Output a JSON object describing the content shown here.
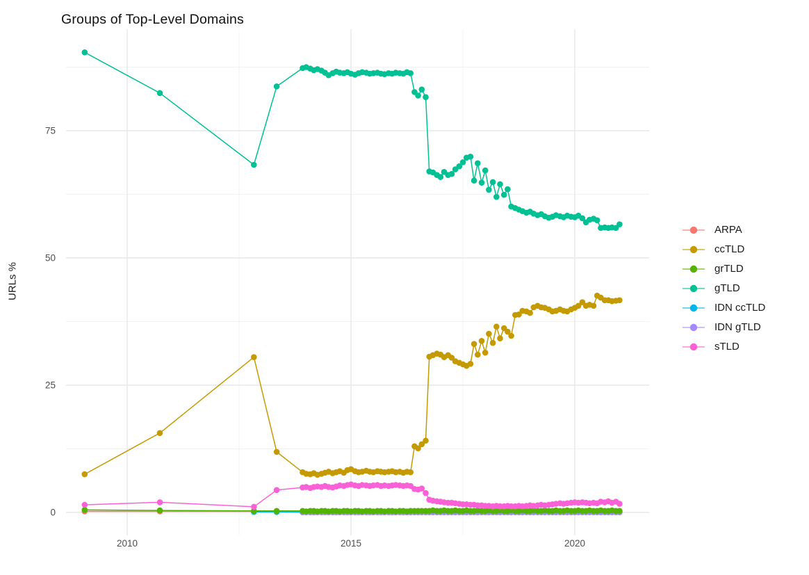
{
  "title": "Groups of Top-Level Domains",
  "axes": {
    "y_label": "URLs %",
    "y_ticks": [
      "0",
      "25",
      "50",
      "75"
    ],
    "y_tick_values": [
      0,
      25,
      50,
      75
    ],
    "y_minor_values": [
      12.5,
      37.5,
      62.5,
      87.5
    ],
    "x_ticks": [
      "2010",
      "2015",
      "2020"
    ],
    "x_tick_values": [
      2010,
      2015,
      2020
    ],
    "x_minor_values": [
      2012.5,
      2017.5
    ]
  },
  "legend": {
    "position": "right",
    "entries": [
      {
        "label": "ARPA",
        "color": "#F8766D"
      },
      {
        "label": "ccTLD",
        "color": "#C49A00"
      },
      {
        "label": "grTLD",
        "color": "#53B400"
      },
      {
        "label": "gTLD",
        "color": "#00C094"
      },
      {
        "label": "IDN ccTLD",
        "color": "#00B6EB"
      },
      {
        "label": "IDN gTLD",
        "color": "#A58AFF"
      },
      {
        "label": "sTLD",
        "color": "#FB61D7"
      }
    ]
  },
  "chart_data": {
    "type": "line",
    "title": "Groups of Top-Level Domains",
    "xlabel": "",
    "ylabel": "URLs %",
    "x_range_shown": [
      2008.6,
      2021.7
    ],
    "y_range_shown": [
      -4.5,
      95
    ],
    "grid": true,
    "legend_position": "right",
    "x": [
      2009.05,
      2010.73,
      2012.83,
      2013.34,
      2013.92,
      2014.0,
      2014.09,
      2014.17,
      2014.25,
      2014.34,
      2014.42,
      2014.5,
      2014.59,
      2014.67,
      2014.75,
      2014.84,
      2014.92,
      2015.0,
      2015.09,
      2015.17,
      2015.25,
      2015.34,
      2015.42,
      2015.5,
      2015.59,
      2015.67,
      2015.75,
      2015.84,
      2015.92,
      2016.0,
      2016.09,
      2016.17,
      2016.25,
      2016.33,
      2016.42,
      2016.5,
      2016.58,
      2016.67,
      2016.75,
      2016.83,
      2016.92,
      2017.0,
      2017.08,
      2017.17,
      2017.25,
      2017.33,
      2017.42,
      2017.5,
      2017.58,
      2017.67,
      2017.75,
      2017.83,
      2017.92,
      2018.0,
      2018.08,
      2018.17,
      2018.25,
      2018.33,
      2018.42,
      2018.5,
      2018.58,
      2018.67,
      2018.75,
      2018.83,
      2018.92,
      2019.0,
      2019.08,
      2019.17,
      2019.25,
      2019.33,
      2019.42,
      2019.5,
      2019.58,
      2019.67,
      2019.75,
      2019.83,
      2019.92,
      2020.0,
      2020.08,
      2020.17,
      2020.25,
      2020.33,
      2020.42,
      2020.5,
      2020.58,
      2020.67,
      2020.75,
      2020.83,
      2020.92,
      2021.0
    ],
    "series": [
      {
        "name": "ARPA",
        "color": "#F8766D",
        "values": [
          0.2,
          0.2,
          0.2,
          0.1,
          0.1,
          0.1,
          0.1,
          0.1,
          0.1,
          0.1,
          0.1,
          0.1,
          0.1,
          0.1,
          0.1,
          0.1,
          0.1,
          0.1,
          0.1,
          0.1,
          0.1,
          0.1,
          0.1,
          0.1,
          0.1,
          0.1,
          0.1,
          0.1,
          0.1,
          0.1,
          0.1,
          0.1,
          0.1,
          0.1,
          0.1,
          0.1,
          0.1,
          0.1,
          0.1,
          0.1,
          0.1,
          0.1,
          0.1,
          0.1,
          0.1,
          0.1,
          0.1,
          0.1,
          0.1,
          0.1,
          0.1,
          0.1,
          0.1,
          0.1,
          0.1,
          0.1,
          0.1,
          0.1,
          0.1,
          0.1,
          0.1,
          0.1,
          0.1,
          0.1,
          0.1,
          0.1,
          0.1,
          0.1,
          0.1,
          0.1,
          0.1,
          0.1,
          0.1,
          0.1,
          0.1,
          0.1,
          0.1,
          0.1,
          0.1,
          0.1,
          0.1,
          0.1,
          0.1,
          0.1,
          0.1,
          0.1,
          0.1,
          0.1,
          0.1,
          0.1
        ]
      },
      {
        "name": "ccTLD",
        "color": "#C49A00",
        "values": [
          7.5,
          15.6,
          30.5,
          11.9,
          7.9,
          7.6,
          7.5,
          7.7,
          7.4,
          7.6,
          7.8,
          8.0,
          7.7,
          7.9,
          8.1,
          7.8,
          8.3,
          8.5,
          8.1,
          7.9,
          8.0,
          8.2,
          8.0,
          7.9,
          8.1,
          8.0,
          7.9,
          8.0,
          8.1,
          7.9,
          8.0,
          7.8,
          8.0,
          7.9,
          13.0,
          12.6,
          13.4,
          14.1,
          30.6,
          30.9,
          31.2,
          31.0,
          30.5,
          30.9,
          30.4,
          29.7,
          29.4,
          29.1,
          28.8,
          29.2,
          33.1,
          31.0,
          33.7,
          31.4,
          35.1,
          33.3,
          36.5,
          34.2,
          36.2,
          35.5,
          34.7,
          38.8,
          38.9,
          39.6,
          39.5,
          39.2,
          40.3,
          40.6,
          40.3,
          40.2,
          39.9,
          39.5,
          39.6,
          39.9,
          39.6,
          39.5,
          39.9,
          40.2,
          40.6,
          41.3,
          40.6,
          40.8,
          40.6,
          42.6,
          42.2,
          41.7,
          41.7,
          41.5,
          41.6,
          41.7
        ]
      },
      {
        "name": "grTLD",
        "color": "#53B400",
        "values": [
          0.5,
          0.4,
          0.3,
          0.3,
          0.3,
          0.2,
          0.3,
          0.3,
          0.2,
          0.3,
          0.3,
          0.2,
          0.3,
          0.3,
          0.2,
          0.3,
          0.3,
          0.2,
          0.3,
          0.3,
          0.2,
          0.3,
          0.3,
          0.2,
          0.3,
          0.3,
          0.2,
          0.3,
          0.3,
          0.2,
          0.3,
          0.3,
          0.2,
          0.3,
          0.3,
          0.3,
          0.3,
          0.3,
          0.3,
          0.4,
          0.3,
          0.3,
          0.4,
          0.3,
          0.3,
          0.4,
          0.3,
          0.3,
          0.4,
          0.3,
          0.3,
          0.4,
          0.3,
          0.3,
          0.4,
          0.3,
          0.3,
          0.4,
          0.3,
          0.3,
          0.4,
          0.3,
          0.3,
          0.4,
          0.3,
          0.3,
          0.4,
          0.3,
          0.3,
          0.4,
          0.3,
          0.3,
          0.4,
          0.3,
          0.3,
          0.4,
          0.3,
          0.3,
          0.4,
          0.3,
          0.3,
          0.4,
          0.3,
          0.3,
          0.4,
          0.3,
          0.3,
          0.4,
          0.3,
          0.3
        ]
      },
      {
        "name": "gTLD",
        "color": "#00C094",
        "values": [
          90.4,
          82.4,
          68.3,
          83.7,
          87.3,
          87.5,
          87.2,
          86.9,
          87.1,
          86.8,
          86.4,
          85.9,
          86.3,
          86.6,
          86.4,
          86.3,
          86.5,
          86.2,
          86.0,
          86.3,
          86.5,
          86.4,
          86.2,
          86.3,
          86.4,
          86.2,
          86.1,
          86.3,
          86.2,
          86.4,
          86.3,
          86.2,
          86.5,
          86.3,
          82.6,
          81.9,
          83.1,
          81.6,
          67.0,
          66.8,
          66.3,
          65.9,
          66.9,
          66.3,
          66.5,
          67.4,
          68.0,
          68.8,
          69.7,
          69.9,
          65.2,
          68.6,
          64.8,
          67.2,
          63.4,
          64.9,
          62.0,
          64.5,
          62.4,
          63.5,
          60.1,
          59.8,
          59.5,
          59.2,
          58.9,
          59.1,
          58.7,
          58.4,
          58.6,
          58.2,
          57.9,
          58.1,
          58.4,
          58.2,
          58.0,
          58.3,
          58.1,
          58.0,
          58.3,
          57.8,
          57.0,
          57.5,
          57.7,
          57.4,
          55.9,
          56.0,
          55.9,
          56.0,
          55.9,
          56.6
        ]
      },
      {
        "name": "IDN ccTLD",
        "color": "#00B6EB",
        "values": [
          null,
          null,
          0.1,
          0.1,
          0.05,
          0.05,
          0.05,
          0.05,
          0.05,
          0.05,
          0.05,
          0.05,
          0.05,
          0.05,
          0.05,
          0.05,
          0.05,
          0.05,
          0.05,
          0.05,
          0.05,
          0.05,
          0.05,
          0.05,
          0.05,
          0.05,
          0.05,
          0.05,
          0.05,
          0.05,
          0.05,
          0.05,
          0.05,
          0.05,
          0.05,
          0.05,
          0.05,
          0.05,
          0.05,
          0.05,
          0.05,
          0.05,
          0.05,
          0.05,
          0.05,
          0.05,
          0.05,
          0.05,
          0.05,
          0.05,
          0.05,
          0.05,
          0.05,
          0.05,
          0.05,
          0.05,
          0.05,
          0.05,
          0.05,
          0.05,
          0.05,
          0.05,
          0.05,
          0.05,
          0.05,
          0.05,
          0.05,
          0.05,
          0.05,
          0.05,
          0.05,
          0.05,
          0.05,
          0.05,
          0.05,
          0.05,
          0.05,
          0.05,
          0.05,
          0.05,
          0.05,
          0.05,
          0.05,
          0.05,
          0.05,
          0.05,
          0.05,
          0.05,
          0.05,
          0.05
        ]
      },
      {
        "name": "IDN gTLD",
        "color": "#A58AFF",
        "values": [
          null,
          null,
          null,
          null,
          0.03,
          0.03,
          0.03,
          0.03,
          0.03,
          0.03,
          0.03,
          0.03,
          0.03,
          0.03,
          0.03,
          0.03,
          0.03,
          0.03,
          0.03,
          0.03,
          0.03,
          0.03,
          0.03,
          0.03,
          0.03,
          0.03,
          0.03,
          0.03,
          0.03,
          0.03,
          0.03,
          0.03,
          0.03,
          0.03,
          0.03,
          0.03,
          0.03,
          0.03,
          0.03,
          0.03,
          0.03,
          0.03,
          0.03,
          0.03,
          0.03,
          0.03,
          0.03,
          0.03,
          0.03,
          0.03,
          0.03,
          0.03,
          0.03,
          0.03,
          0.03,
          0.03,
          0.03,
          0.03,
          0.03,
          0.03,
          0.03,
          0.03,
          0.03,
          0.03,
          0.03,
          0.03,
          0.03,
          0.03,
          0.03,
          0.03,
          0.03,
          0.03,
          0.03,
          0.03,
          0.03,
          0.03,
          0.03,
          0.03,
          0.03,
          0.03,
          0.03,
          0.03,
          0.03,
          0.03,
          0.03,
          0.03,
          0.03,
          0.03,
          0.03,
          0.03
        ]
      },
      {
        "name": "sTLD",
        "color": "#FB61D7",
        "values": [
          1.5,
          2.0,
          1.1,
          4.4,
          4.9,
          5.0,
          4.8,
          5.0,
          5.1,
          5.0,
          5.2,
          5.0,
          4.9,
          5.1,
          5.3,
          5.2,
          5.4,
          5.5,
          5.3,
          5.2,
          5.4,
          5.3,
          5.2,
          5.3,
          5.4,
          5.2,
          5.3,
          5.2,
          5.3,
          5.4,
          5.3,
          5.2,
          5.3,
          5.2,
          4.6,
          4.5,
          4.7,
          3.8,
          2.5,
          2.3,
          2.2,
          2.1,
          2.0,
          1.9,
          1.9,
          1.8,
          1.7,
          1.6,
          1.6,
          1.5,
          1.5,
          1.4,
          1.4,
          1.3,
          1.3,
          1.2,
          1.3,
          1.2,
          1.2,
          1.3,
          1.2,
          1.2,
          1.3,
          1.2,
          1.3,
          1.4,
          1.3,
          1.4,
          1.5,
          1.4,
          1.5,
          1.6,
          1.7,
          1.8,
          1.7,
          1.8,
          1.9,
          2.0,
          1.9,
          2.0,
          1.9,
          1.8,
          1.9,
          1.8,
          2.1,
          2.0,
          2.2,
          1.9,
          2.1,
          1.7
        ]
      }
    ],
    "draw_order": [
      "ARPA",
      "IDN ccTLD",
      "IDN gTLD",
      "grTLD",
      "ccTLD",
      "gTLD",
      "sTLD"
    ]
  }
}
